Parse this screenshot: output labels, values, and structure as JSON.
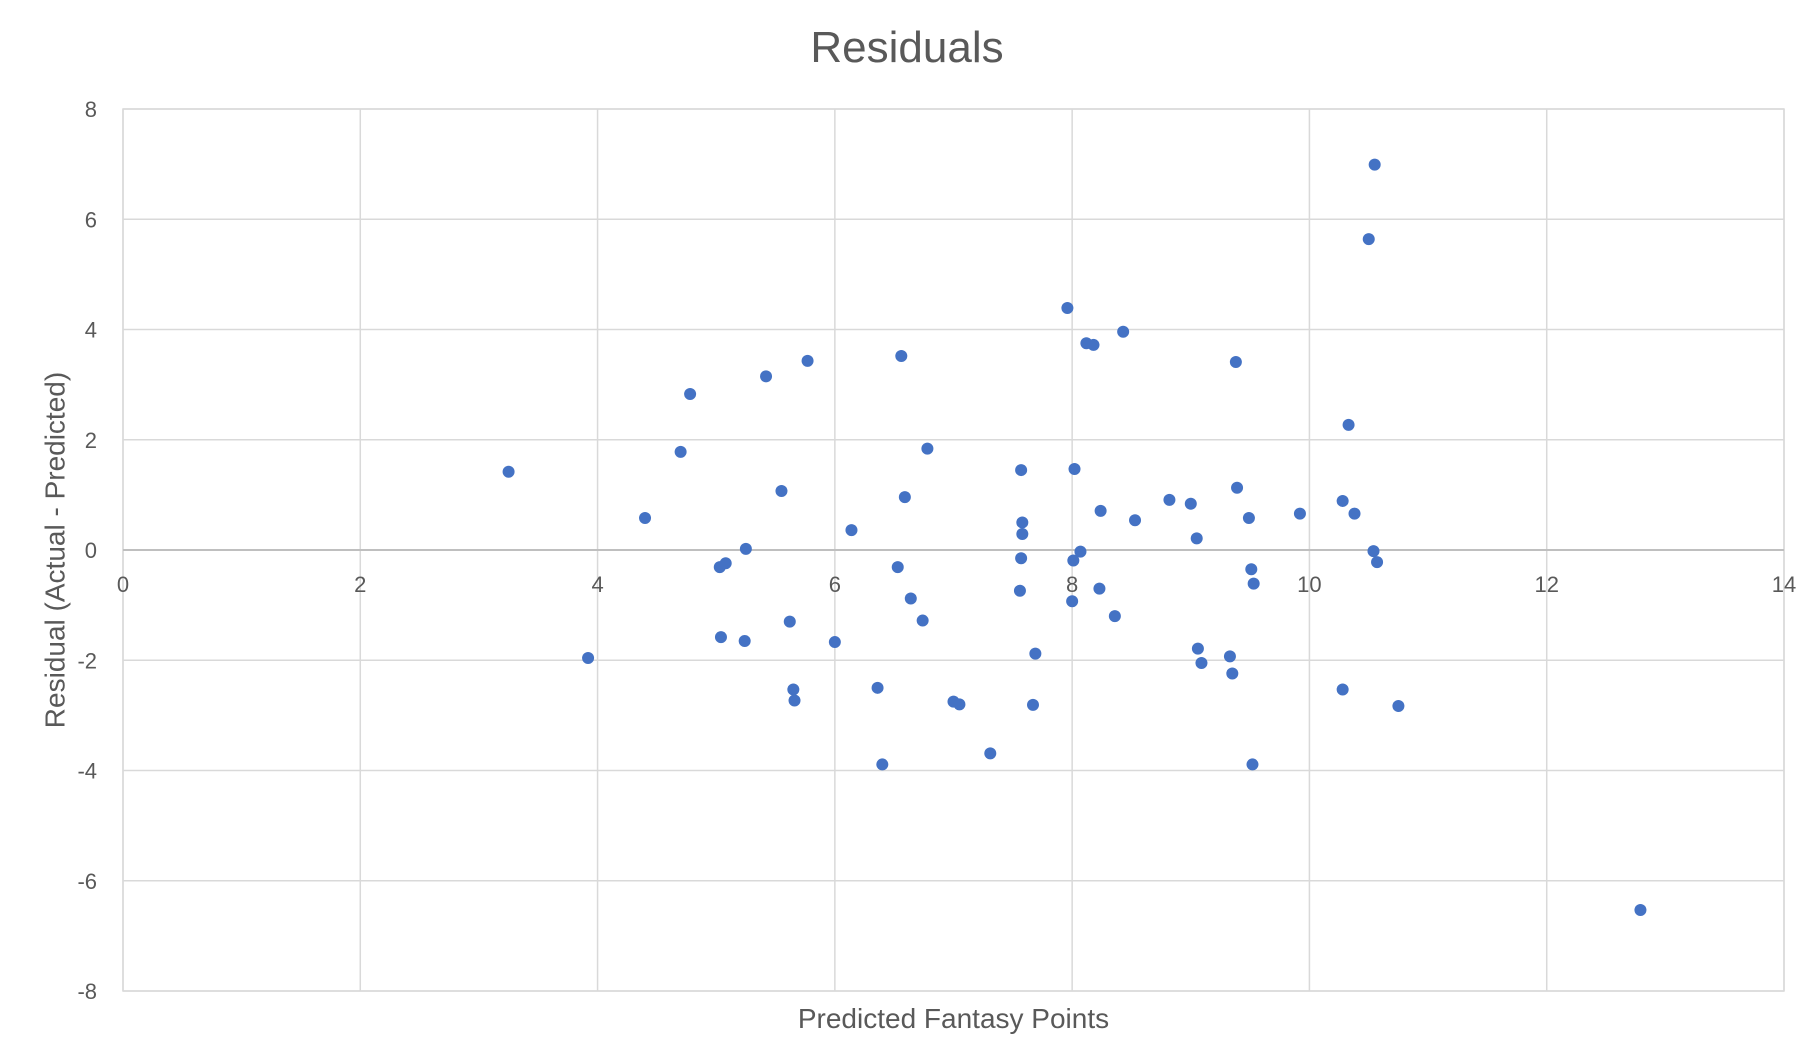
{
  "chart_data": {
    "type": "scatter",
    "title": "Residuals",
    "xlabel": "Predicted Fantasy Points",
    "ylabel": "Residual (Actual - Predicted)",
    "xlim": [
      0,
      14
    ],
    "ylim": [
      -8,
      8
    ],
    "x_ticks": [
      0,
      2,
      4,
      6,
      8,
      10,
      12,
      14
    ],
    "y_ticks": [
      -8,
      -6,
      -4,
      -2,
      0,
      2,
      4,
      6,
      8
    ],
    "grid": true,
    "colors": {
      "marker": "#4472C4",
      "grid": "#d9d9d9",
      "zero_axis": "#bfbfbf",
      "text": "#595959"
    },
    "series": [
      {
        "points": [
          [
            3.25,
            1.42
          ],
          [
            3.92,
            -1.96
          ],
          [
            4.4,
            0.58
          ],
          [
            4.7,
            1.78
          ],
          [
            4.78,
            2.83
          ],
          [
            5.03,
            -0.31
          ],
          [
            5.08,
            -0.24
          ],
          [
            5.04,
            -1.58
          ],
          [
            5.25,
            0.02
          ],
          [
            5.24,
            -1.65
          ],
          [
            5.42,
            3.15
          ],
          [
            5.55,
            1.07
          ],
          [
            5.62,
            -1.3
          ],
          [
            5.65,
            -2.53
          ],
          [
            5.66,
            -2.73
          ],
          [
            5.77,
            3.43
          ],
          [
            6.0,
            -1.67
          ],
          [
            6.14,
            0.36
          ],
          [
            6.36,
            -2.5
          ],
          [
            6.4,
            -3.89
          ],
          [
            6.53,
            -0.31
          ],
          [
            6.56,
            3.52
          ],
          [
            6.59,
            0.96
          ],
          [
            6.64,
            -0.88
          ],
          [
            6.74,
            -1.28
          ],
          [
            6.78,
            1.84
          ],
          [
            7.0,
            -2.75
          ],
          [
            7.05,
            -2.8
          ],
          [
            7.31,
            -3.69
          ],
          [
            7.56,
            -0.74
          ],
          [
            7.57,
            1.45
          ],
          [
            7.57,
            -0.15
          ],
          [
            7.58,
            0.5
          ],
          [
            7.58,
            0.29
          ],
          [
            7.67,
            -2.81
          ],
          [
            7.69,
            -1.88
          ],
          [
            7.96,
            4.39
          ],
          [
            8.0,
            -0.93
          ],
          [
            8.01,
            -0.19
          ],
          [
            8.02,
            1.47
          ],
          [
            8.07,
            -0.03
          ],
          [
            8.12,
            3.75
          ],
          [
            8.18,
            3.72
          ],
          [
            8.23,
            -0.7
          ],
          [
            8.24,
            0.71
          ],
          [
            8.36,
            -1.2
          ],
          [
            8.43,
            3.96
          ],
          [
            8.53,
            0.54
          ],
          [
            8.82,
            0.91
          ],
          [
            9.0,
            0.84
          ],
          [
            9.05,
            0.21
          ],
          [
            9.06,
            -1.79
          ],
          [
            9.09,
            -2.05
          ],
          [
            9.33,
            -1.93
          ],
          [
            9.35,
            -2.24
          ],
          [
            9.38,
            3.41
          ],
          [
            9.39,
            1.13
          ],
          [
            9.49,
            0.58
          ],
          [
            9.51,
            -0.35
          ],
          [
            9.52,
            -3.89
          ],
          [
            9.53,
            -0.61
          ],
          [
            9.92,
            0.66
          ],
          [
            10.28,
            0.89
          ],
          [
            10.28,
            -2.53
          ],
          [
            10.33,
            2.27
          ],
          [
            10.38,
            0.66
          ],
          [
            10.5,
            5.64
          ],
          [
            10.54,
            -0.02
          ],
          [
            10.55,
            6.99
          ],
          [
            10.57,
            -0.22
          ],
          [
            10.75,
            -2.83
          ],
          [
            12.79,
            -6.53
          ]
        ]
      }
    ]
  }
}
